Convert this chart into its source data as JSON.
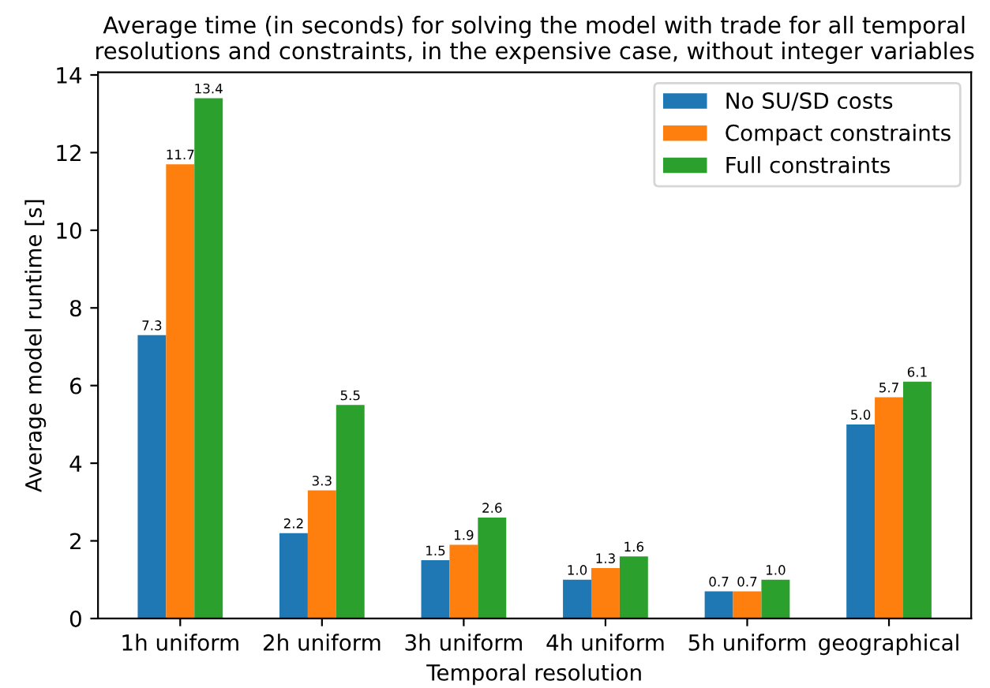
{
  "chart_data": {
    "type": "bar",
    "title": "Average time (in seconds) for solving the model with trade for all temporal\nresolutions and constraints, in the expensive case, without integer variables",
    "xlabel": "Temporal resolution",
    "ylabel": "Average model runtime [s]",
    "categories": [
      "1h uniform",
      "2h uniform",
      "3h uniform",
      "4h uniform",
      "5h uniform",
      "geographical"
    ],
    "series": [
      {
        "name": "No SU/SD costs",
        "color": "#1f77b4",
        "values": [
          7.3,
          2.2,
          1.5,
          1.0,
          0.7,
          5.0
        ],
        "value_labels": [
          "7.3",
          "2.2",
          "1.5",
          "1.0",
          "0.7",
          "5.0"
        ]
      },
      {
        "name": "Compact constraints",
        "color": "#ff7f0e",
        "values": [
          11.7,
          3.3,
          1.9,
          1.3,
          0.7,
          5.7
        ],
        "value_labels": [
          "11.7",
          "3.3",
          "1.9",
          "1.3",
          "0.7",
          "5.7"
        ]
      },
      {
        "name": "Full constraints",
        "color": "#2ca02c",
        "values": [
          13.4,
          5.5,
          2.6,
          1.6,
          1.0,
          6.1
        ],
        "value_labels": [
          "13.4",
          "5.5",
          "2.6",
          "1.6",
          "1.0",
          "6.1"
        ]
      }
    ],
    "ylim": [
      0,
      14.07
    ],
    "yticks": [
      0,
      2,
      4,
      6,
      8,
      10,
      12,
      14
    ],
    "legend": "top right",
    "grid": false
  }
}
